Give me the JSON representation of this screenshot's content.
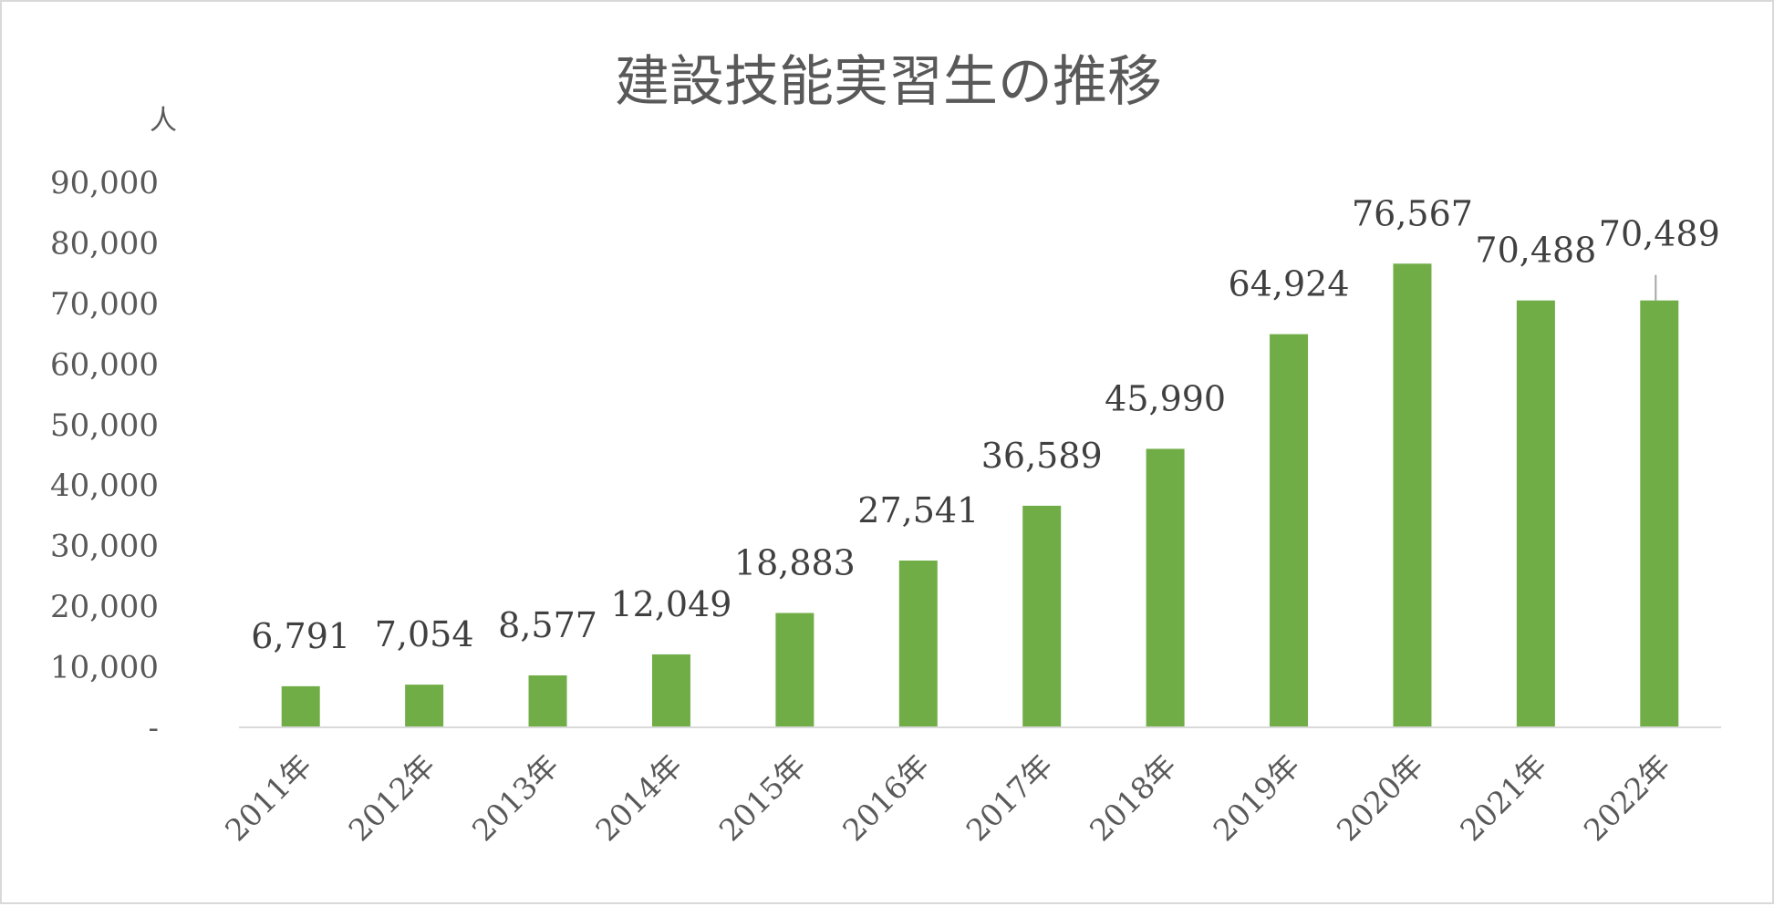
{
  "chart_data": {
    "type": "bar",
    "title": "建設技能実習生の推移",
    "unit_label": "人",
    "categories": [
      "2011年",
      "2012年",
      "2013年",
      "2014年",
      "2015年",
      "2016年",
      "2017年",
      "2018年",
      "2019年",
      "2020年",
      "2021年",
      "2022年"
    ],
    "values": [
      6791,
      7054,
      8577,
      12049,
      18883,
      27541,
      36589,
      45990,
      64924,
      76567,
      70488,
      70489
    ],
    "data_labels": [
      "6,791",
      "7,054",
      "8,577",
      "12,049",
      "18,883",
      "27,541",
      "36,589",
      "45,990",
      "64,924",
      "76,567",
      "70,488",
      "70,489"
    ],
    "yticks": [
      0,
      10000,
      20000,
      30000,
      40000,
      50000,
      60000,
      70000,
      80000,
      90000
    ],
    "ytick_labels": [
      "-",
      "10,000",
      "20,000",
      "30,000",
      "40,000",
      "50,000",
      "60,000",
      "70,000",
      "80,000",
      "90,000"
    ],
    "ylim": [
      0,
      90000
    ],
    "grid": false,
    "legend": "none",
    "bar_color": "#70ad47"
  }
}
